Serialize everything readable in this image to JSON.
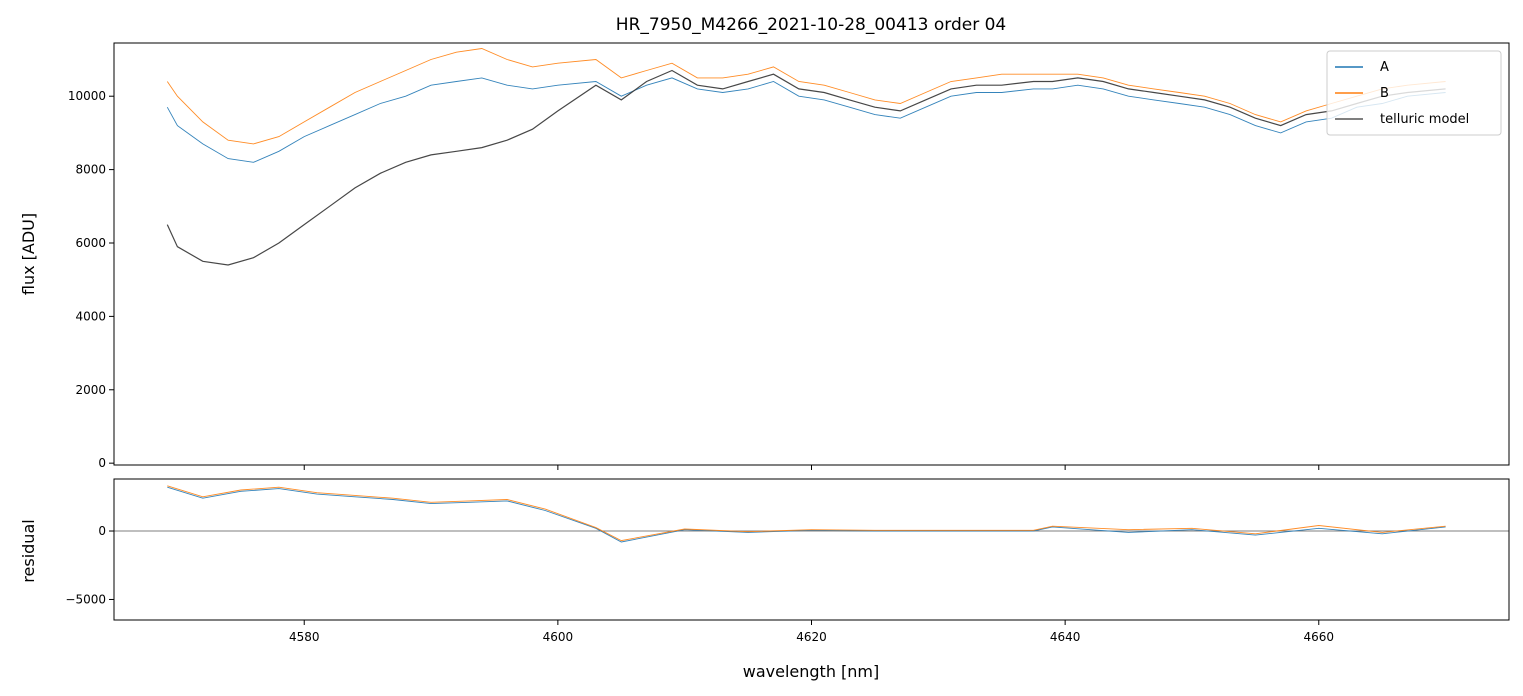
{
  "chart_data": [
    {
      "type": "line",
      "title": "HR_7950_M4266_2021-10-28_00413  order 04",
      "xlabel": "",
      "ylabel": "flux [ADU]",
      "xlim": [
        4565,
        4675
      ],
      "ylim": [
        -50,
        11450
      ],
      "xticks": [
        4580,
        4600,
        4620,
        4640,
        4660
      ],
      "yticks": [
        0,
        2000,
        4000,
        6000,
        8000,
        10000
      ],
      "ytick_labels": [
        "0",
        "2000",
        "4000",
        "6000",
        "8000",
        "10000"
      ],
      "legend": {
        "placement": "top-right",
        "entries": [
          "A",
          "B",
          "telluric model"
        ]
      },
      "colors": {
        "A": "#1f77b4",
        "B": "#ff7f0e",
        "telluric model": "#000000"
      },
      "series": [
        {
          "name": "A",
          "x": [
            4569.2,
            4570,
            4572,
            4574,
            4576,
            4578,
            4580,
            4582,
            4584,
            4586,
            4588,
            4590,
            4592,
            4594,
            4596,
            4598,
            4600,
            4603,
            4605,
            4607,
            4609,
            4611,
            4613,
            4615,
            4617,
            4619,
            4621,
            4623,
            4625,
            4627,
            4629,
            4631,
            4633,
            4635,
            4637.5,
            4639,
            4641,
            4643,
            4645,
            4647,
            4649,
            4651,
            4653,
            4655,
            4657,
            4659,
            4661,
            4663,
            4665,
            4667,
            4670
          ],
          "y": [
            9700,
            9200,
            8700,
            8300,
            8200,
            8500,
            8900,
            9200,
            9500,
            9800,
            10000,
            10300,
            10400,
            10500,
            10300,
            10200,
            10300,
            10400,
            10000,
            10300,
            10500,
            10200,
            10100,
            10200,
            10400,
            10000,
            9900,
            9700,
            9500,
            9400,
            9700,
            10000,
            10100,
            10100,
            10200,
            10200,
            10300,
            10200,
            10000,
            9900,
            9800,
            9700,
            9500,
            9200,
            9000,
            9300,
            9400,
            9700,
            9800,
            10000,
            10100
          ]
        },
        {
          "name": "B",
          "x": [
            4569.2,
            4570,
            4572,
            4574,
            4576,
            4578,
            4580,
            4582,
            4584,
            4586,
            4588,
            4590,
            4592,
            4594,
            4596,
            4598,
            4600,
            4603,
            4605,
            4607,
            4609,
            4611,
            4613,
            4615,
            4617,
            4619,
            4621,
            4623,
            4625,
            4627,
            4629,
            4631,
            4633,
            4635,
            4637.5,
            4639,
            4641,
            4643,
            4645,
            4647,
            4649,
            4651,
            4653,
            4655,
            4657,
            4659,
            4661,
            4663,
            4665,
            4667,
            4670
          ],
          "y": [
            10400,
            10000,
            9300,
            8800,
            8700,
            8900,
            9300,
            9700,
            10100,
            10400,
            10700,
            11000,
            11200,
            11300,
            11000,
            10800,
            10900,
            11000,
            10500,
            10700,
            10900,
            10500,
            10500,
            10600,
            10800,
            10400,
            10300,
            10100,
            9900,
            9800,
            10100,
            10400,
            10500,
            10600,
            10600,
            10600,
            10600,
            10500,
            10300,
            10200,
            10100,
            10000,
            9800,
            9500,
            9300,
            9600,
            9800,
            10000,
            10200,
            10300,
            10400
          ]
        },
        {
          "name": "telluric model",
          "x": [
            4569.2,
            4570,
            4572,
            4574,
            4576,
            4578,
            4580,
            4582,
            4584,
            4586,
            4588,
            4590,
            4592,
            4594,
            4596,
            4598,
            4600,
            4603,
            4605,
            4607,
            4609,
            4611,
            4613,
            4615,
            4617,
            4619,
            4621,
            4623,
            4625,
            4627,
            4629,
            4631,
            4633,
            4635,
            4637.5,
            4639,
            4641,
            4643,
            4645,
            4647,
            4649,
            4651,
            4653,
            4655,
            4657,
            4659,
            4661,
            4663,
            4665,
            4667,
            4670
          ],
          "y": [
            6500,
            5900,
            5500,
            5400,
            5600,
            6000,
            6500,
            7000,
            7500,
            7900,
            8200,
            8400,
            8500,
            8600,
            8800,
            9100,
            9600,
            10300,
            9900,
            10400,
            10700,
            10300,
            10200,
            10400,
            10600,
            10200,
            10100,
            9900,
            9700,
            9600,
            9900,
            10200,
            10300,
            10300,
            10400,
            10400,
            10500,
            10400,
            10200,
            10100,
            10000,
            9900,
            9700,
            9400,
            9200,
            9500,
            9600,
            9800,
            10000,
            10100,
            10200
          ]
        }
      ]
    },
    {
      "type": "line",
      "title": "",
      "xlabel": "wavelength [nm]",
      "ylabel": "residual",
      "xlim": [
        4565,
        4675
      ],
      "ylim": [
        -6500,
        3800
      ],
      "xticks": [
        4580,
        4600,
        4620,
        4640,
        4660
      ],
      "xtick_labels": [
        "4580",
        "4600",
        "4620",
        "4640",
        "4660"
      ],
      "yticks": [
        -5000,
        0
      ],
      "ytick_labels": [
        "−5000",
        "0"
      ],
      "zero_line": true,
      "series": [
        {
          "name": "A",
          "x": [
            4569.2,
            4572,
            4575,
            4578,
            4581,
            4584,
            4587,
            4590,
            4593,
            4596,
            4599,
            4603,
            4605,
            4610,
            4615,
            4620,
            4625,
            4630,
            4637.5,
            4639,
            4645,
            4650,
            4655,
            4660,
            4665,
            4670
          ],
          "y": [
            3200,
            2400,
            2900,
            3100,
            2700,
            2500,
            2300,
            2000,
            2100,
            2200,
            1500,
            200,
            -800,
            100,
            -100,
            50,
            0,
            0,
            0,
            300,
            -100,
            100,
            -300,
            200,
            -200,
            300
          ]
        },
        {
          "name": "B",
          "x": [
            4569.2,
            4572,
            4575,
            4578,
            4581,
            4584,
            4587,
            4590,
            4593,
            4596,
            4599,
            4603,
            4605,
            4610,
            4615,
            4620,
            4625,
            4630,
            4637.5,
            4639,
            4645,
            4650,
            4655,
            4660,
            4665,
            4670
          ],
          "y": [
            3300,
            2500,
            3000,
            3200,
            2800,
            2600,
            2400,
            2100,
            2200,
            2300,
            1600,
            250,
            -700,
            150,
            -50,
            100,
            50,
            50,
            50,
            350,
            100,
            200,
            -200,
            400,
            -100,
            350
          ]
        }
      ]
    }
  ]
}
